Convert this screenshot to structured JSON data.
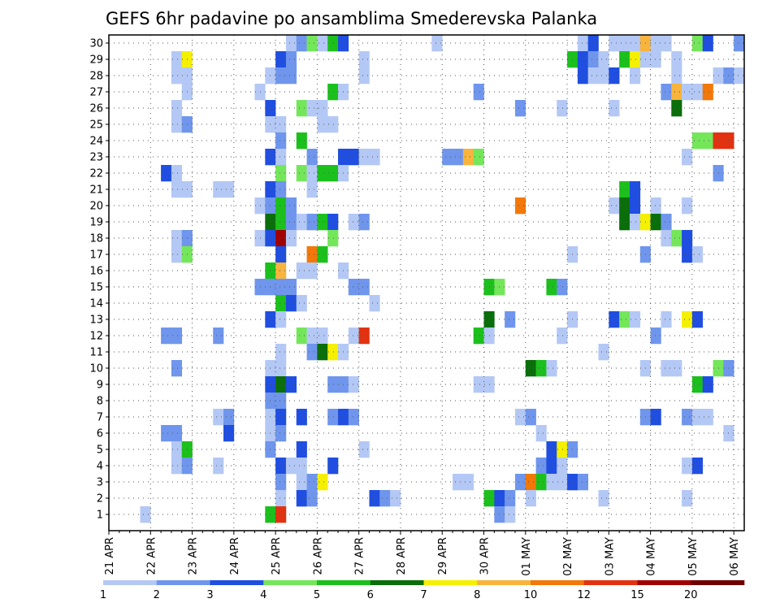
{
  "chart_data": {
    "type": "heatmap",
    "title": "GEFS 6hr padavine po ansamblima Smederevska Palanka",
    "xlabel": "",
    "ylabel": "",
    "x_ticks": [
      "21 APR",
      "22 APR",
      "23 APR",
      "24 APR",
      "25 APR",
      "26 APR",
      "27 APR",
      "28 APR",
      "29 APR",
      "30 APR",
      "01 MAY",
      "02 MAY",
      "03 MAY",
      "04 MAY",
      "05 MAY",
      "06 MAY"
    ],
    "y_ticks": [
      1,
      2,
      3,
      4,
      5,
      6,
      7,
      8,
      9,
      10,
      11,
      12,
      13,
      14,
      15,
      16,
      17,
      18,
      19,
      20,
      21,
      22,
      23,
      24,
      25,
      26,
      27,
      28,
      29,
      30
    ],
    "xlim_days": [
      0,
      15.25
    ],
    "ylim": [
      0,
      30.5
    ],
    "step_hours": 6,
    "grid": true,
    "color_levels": [
      1,
      2,
      3,
      4,
      5,
      6,
      7,
      8,
      10,
      12,
      15,
      20
    ],
    "colors": [
      "#b4c8f5",
      "#6f96ec",
      "#1f4ee0",
      "#74e65a",
      "#1cc01c",
      "#0a6e0a",
      "#f4f000",
      "#f8b43c",
      "#f2780a",
      "#e23210",
      "#a00000",
      "#6e0000"
    ],
    "cells_columns": [
      "member",
      "step",
      "class"
    ],
    "cells": [
      [
        30,
        17,
        0
      ],
      [
        30,
        18,
        1
      ],
      [
        30,
        19,
        3
      ],
      [
        30,
        20,
        0
      ],
      [
        30,
        21,
        4
      ],
      [
        30,
        22,
        2
      ],
      [
        30,
        31,
        0
      ],
      [
        30,
        45,
        0
      ],
      [
        30,
        46,
        2
      ],
      [
        30,
        48,
        0
      ],
      [
        30,
        49,
        0
      ],
      [
        30,
        50,
        0
      ],
      [
        30,
        51,
        7
      ],
      [
        30,
        52,
        0
      ],
      [
        30,
        53,
        0
      ],
      [
        30,
        56,
        3
      ],
      [
        30,
        57,
        2
      ],
      [
        30,
        60,
        1
      ],
      [
        29,
        6,
        0
      ],
      [
        29,
        7,
        6
      ],
      [
        29,
        16,
        2
      ],
      [
        29,
        17,
        1
      ],
      [
        29,
        24,
        0
      ],
      [
        29,
        44,
        4
      ],
      [
        29,
        45,
        2
      ],
      [
        29,
        46,
        1
      ],
      [
        29,
        47,
        0
      ],
      [
        29,
        49,
        4
      ],
      [
        29,
        50,
        6
      ],
      [
        29,
        51,
        0
      ],
      [
        29,
        52,
        0
      ],
      [
        29,
        54,
        0
      ],
      [
        28,
        6,
        0
      ],
      [
        28,
        7,
        0
      ],
      [
        28,
        15,
        0
      ],
      [
        28,
        16,
        1
      ],
      [
        28,
        17,
        1
      ],
      [
        28,
        24,
        0
      ],
      [
        28,
        45,
        2
      ],
      [
        28,
        46,
        0
      ],
      [
        28,
        47,
        0
      ],
      [
        28,
        48,
        2
      ],
      [
        28,
        50,
        0
      ],
      [
        28,
        54,
        0
      ],
      [
        28,
        58,
        0
      ],
      [
        28,
        59,
        1
      ],
      [
        28,
        60,
        0
      ],
      [
        27,
        7,
        0
      ],
      [
        27,
        14,
        0
      ],
      [
        27,
        21,
        4
      ],
      [
        27,
        22,
        0
      ],
      [
        27,
        35,
        1
      ],
      [
        27,
        53,
        1
      ],
      [
        27,
        54,
        7
      ],
      [
        27,
        55,
        0
      ],
      [
        27,
        56,
        0
      ],
      [
        27,
        57,
        8
      ],
      [
        26,
        6,
        0
      ],
      [
        26,
        15,
        2
      ],
      [
        26,
        18,
        3
      ],
      [
        26,
        19,
        0
      ],
      [
        26,
        20,
        0
      ],
      [
        26,
        39,
        1
      ],
      [
        26,
        43,
        0
      ],
      [
        26,
        48,
        0
      ],
      [
        26,
        54,
        5
      ],
      [
        25,
        6,
        0
      ],
      [
        25,
        7,
        1
      ],
      [
        25,
        15,
        0
      ],
      [
        25,
        16,
        0
      ],
      [
        25,
        20,
        0
      ],
      [
        25,
        21,
        0
      ],
      [
        24,
        16,
        1
      ],
      [
        24,
        18,
        4
      ],
      [
        24,
        56,
        3
      ],
      [
        24,
        57,
        3
      ],
      [
        24,
        58,
        9
      ],
      [
        24,
        59,
        9
      ],
      [
        23,
        15,
        2
      ],
      [
        23,
        16,
        0
      ],
      [
        23,
        19,
        1
      ],
      [
        23,
        22,
        2
      ],
      [
        23,
        23,
        2
      ],
      [
        23,
        24,
        0
      ],
      [
        23,
        25,
        0
      ],
      [
        23,
        32,
        1
      ],
      [
        23,
        33,
        1
      ],
      [
        23,
        34,
        7
      ],
      [
        23,
        35,
        3
      ],
      [
        23,
        55,
        0
      ],
      [
        22,
        5,
        2
      ],
      [
        22,
        6,
        0
      ],
      [
        22,
        16,
        3
      ],
      [
        22,
        18,
        3
      ],
      [
        22,
        19,
        0
      ],
      [
        22,
        20,
        4
      ],
      [
        22,
        21,
        4
      ],
      [
        22,
        22,
        0
      ],
      [
        22,
        58,
        1
      ],
      [
        21,
        6,
        0
      ],
      [
        21,
        7,
        0
      ],
      [
        21,
        10,
        0
      ],
      [
        21,
        11,
        0
      ],
      [
        21,
        15,
        2
      ],
      [
        21,
        16,
        1
      ],
      [
        21,
        19,
        0
      ],
      [
        21,
        49,
        4
      ],
      [
        21,
        50,
        2
      ],
      [
        20,
        14,
        0
      ],
      [
        20,
        15,
        1
      ],
      [
        20,
        16,
        4
      ],
      [
        20,
        17,
        1
      ],
      [
        20,
        39,
        8
      ],
      [
        20,
        48,
        0
      ],
      [
        20,
        49,
        5
      ],
      [
        20,
        50,
        2
      ],
      [
        20,
        52,
        0
      ],
      [
        20,
        55,
        0
      ],
      [
        19,
        15,
        5
      ],
      [
        19,
        16,
        4
      ],
      [
        19,
        17,
        1
      ],
      [
        19,
        18,
        0
      ],
      [
        19,
        19,
        1
      ],
      [
        19,
        20,
        4
      ],
      [
        19,
        21,
        2
      ],
      [
        19,
        23,
        0
      ],
      [
        19,
        24,
        1
      ],
      [
        19,
        49,
        5
      ],
      [
        19,
        50,
        0
      ],
      [
        19,
        51,
        6
      ],
      [
        19,
        52,
        5
      ],
      [
        19,
        53,
        1
      ],
      [
        18,
        6,
        0
      ],
      [
        18,
        7,
        1
      ],
      [
        18,
        14,
        0
      ],
      [
        18,
        15,
        2
      ],
      [
        18,
        16,
        10
      ],
      [
        18,
        17,
        0
      ],
      [
        18,
        21,
        3
      ],
      [
        18,
        53,
        0
      ],
      [
        18,
        54,
        3
      ],
      [
        18,
        55,
        2
      ],
      [
        17,
        6,
        0
      ],
      [
        17,
        7,
        3
      ],
      [
        17,
        16,
        2
      ],
      [
        17,
        19,
        8
      ],
      [
        17,
        20,
        4
      ],
      [
        17,
        44,
        0
      ],
      [
        17,
        51,
        1
      ],
      [
        17,
        55,
        2
      ],
      [
        17,
        56,
        0
      ],
      [
        16,
        15,
        4
      ],
      [
        16,
        16,
        7
      ],
      [
        16,
        18,
        0
      ],
      [
        16,
        19,
        0
      ],
      [
        16,
        22,
        0
      ],
      [
        15,
        14,
        1
      ],
      [
        15,
        15,
        1
      ],
      [
        15,
        16,
        1
      ],
      [
        15,
        17,
        1
      ],
      [
        15,
        23,
        1
      ],
      [
        15,
        24,
        1
      ],
      [
        15,
        36,
        4
      ],
      [
        15,
        37,
        3
      ],
      [
        15,
        42,
        4
      ],
      [
        15,
        43,
        1
      ],
      [
        14,
        16,
        4
      ],
      [
        14,
        17,
        2
      ],
      [
        14,
        18,
        0
      ],
      [
        14,
        25,
        0
      ],
      [
        13,
        15,
        2
      ],
      [
        13,
        16,
        0
      ],
      [
        13,
        36,
        5
      ],
      [
        13,
        38,
        1
      ],
      [
        13,
        44,
        0
      ],
      [
        13,
        48,
        2
      ],
      [
        13,
        49,
        3
      ],
      [
        13,
        50,
        0
      ],
      [
        13,
        53,
        0
      ],
      [
        13,
        55,
        6
      ],
      [
        13,
        56,
        2
      ],
      [
        12,
        5,
        1
      ],
      [
        12,
        6,
        1
      ],
      [
        12,
        10,
        1
      ],
      [
        12,
        18,
        3
      ],
      [
        12,
        19,
        0
      ],
      [
        12,
        20,
        0
      ],
      [
        12,
        23,
        0
      ],
      [
        12,
        24,
        9
      ],
      [
        12,
        35,
        4
      ],
      [
        12,
        36,
        0
      ],
      [
        12,
        43,
        0
      ],
      [
        12,
        52,
        1
      ],
      [
        11,
        16,
        0
      ],
      [
        11,
        19,
        1
      ],
      [
        11,
        20,
        5
      ],
      [
        11,
        21,
        6
      ],
      [
        11,
        22,
        0
      ],
      [
        11,
        47,
        0
      ],
      [
        10,
        6,
        1
      ],
      [
        10,
        15,
        0
      ],
      [
        10,
        16,
        0
      ],
      [
        10,
        40,
        5
      ],
      [
        10,
        41,
        4
      ],
      [
        10,
        42,
        0
      ],
      [
        10,
        51,
        0
      ],
      [
        10,
        53,
        0
      ],
      [
        10,
        54,
        0
      ],
      [
        10,
        58,
        3
      ],
      [
        10,
        59,
        1
      ],
      [
        9,
        15,
        2
      ],
      [
        9,
        16,
        5
      ],
      [
        9,
        17,
        2
      ],
      [
        9,
        21,
        1
      ],
      [
        9,
        22,
        1
      ],
      [
        9,
        23,
        0
      ],
      [
        9,
        35,
        0
      ],
      [
        9,
        36,
        0
      ],
      [
        9,
        56,
        4
      ],
      [
        9,
        57,
        2
      ],
      [
        8,
        15,
        1
      ],
      [
        8,
        16,
        1
      ],
      [
        7,
        10,
        0
      ],
      [
        7,
        11,
        1
      ],
      [
        7,
        15,
        0
      ],
      [
        7,
        16,
        2
      ],
      [
        7,
        18,
        2
      ],
      [
        7,
        21,
        1
      ],
      [
        7,
        22,
        2
      ],
      [
        7,
        23,
        1
      ],
      [
        7,
        39,
        0
      ],
      [
        7,
        40,
        1
      ],
      [
        7,
        51,
        1
      ],
      [
        7,
        52,
        2
      ],
      [
        7,
        55,
        1
      ],
      [
        7,
        56,
        0
      ],
      [
        7,
        57,
        0
      ],
      [
        6,
        5,
        1
      ],
      [
        6,
        6,
        1
      ],
      [
        6,
        11,
        2
      ],
      [
        6,
        15,
        0
      ],
      [
        6,
        16,
        1
      ],
      [
        6,
        41,
        0
      ],
      [
        6,
        59,
        0
      ],
      [
        5,
        6,
        0
      ],
      [
        5,
        7,
        4
      ],
      [
        5,
        15,
        1
      ],
      [
        5,
        18,
        2
      ],
      [
        5,
        24,
        0
      ],
      [
        5,
        42,
        2
      ],
      [
        5,
        43,
        6
      ],
      [
        5,
        44,
        1
      ],
      [
        4,
        6,
        0
      ],
      [
        4,
        7,
        1
      ],
      [
        4,
        10,
        0
      ],
      [
        4,
        16,
        2
      ],
      [
        4,
        17,
        0
      ],
      [
        4,
        18,
        0
      ],
      [
        4,
        21,
        2
      ],
      [
        4,
        41,
        1
      ],
      [
        4,
        42,
        2
      ],
      [
        4,
        43,
        0
      ],
      [
        4,
        55,
        0
      ],
      [
        4,
        56,
        2
      ],
      [
        3,
        16,
        1
      ],
      [
        3,
        18,
        0
      ],
      [
        3,
        19,
        1
      ],
      [
        3,
        20,
        6
      ],
      [
        3,
        33,
        0
      ],
      [
        3,
        34,
        0
      ],
      [
        3,
        39,
        1
      ],
      [
        3,
        40,
        8
      ],
      [
        3,
        41,
        4
      ],
      [
        3,
        42,
        0
      ],
      [
        3,
        43,
        0
      ],
      [
        3,
        44,
        2
      ],
      [
        3,
        45,
        1
      ],
      [
        2,
        16,
        0
      ],
      [
        2,
        18,
        2
      ],
      [
        2,
        19,
        1
      ],
      [
        2,
        25,
        2
      ],
      [
        2,
        26,
        1
      ],
      [
        2,
        27,
        0
      ],
      [
        2,
        36,
        4
      ],
      [
        2,
        37,
        2
      ],
      [
        2,
        38,
        1
      ],
      [
        2,
        40,
        0
      ],
      [
        2,
        47,
        0
      ],
      [
        2,
        55,
        0
      ],
      [
        1,
        3,
        0
      ],
      [
        1,
        15,
        4
      ],
      [
        1,
        16,
        9
      ],
      [
        1,
        37,
        1
      ],
      [
        1,
        38,
        0
      ]
    ],
    "legend": {
      "labels": [
        "1",
        "2",
        "3",
        "4",
        "5",
        "6",
        "7",
        "8",
        "10",
        "12",
        "15",
        "20"
      ],
      "placement": "bottom"
    }
  }
}
